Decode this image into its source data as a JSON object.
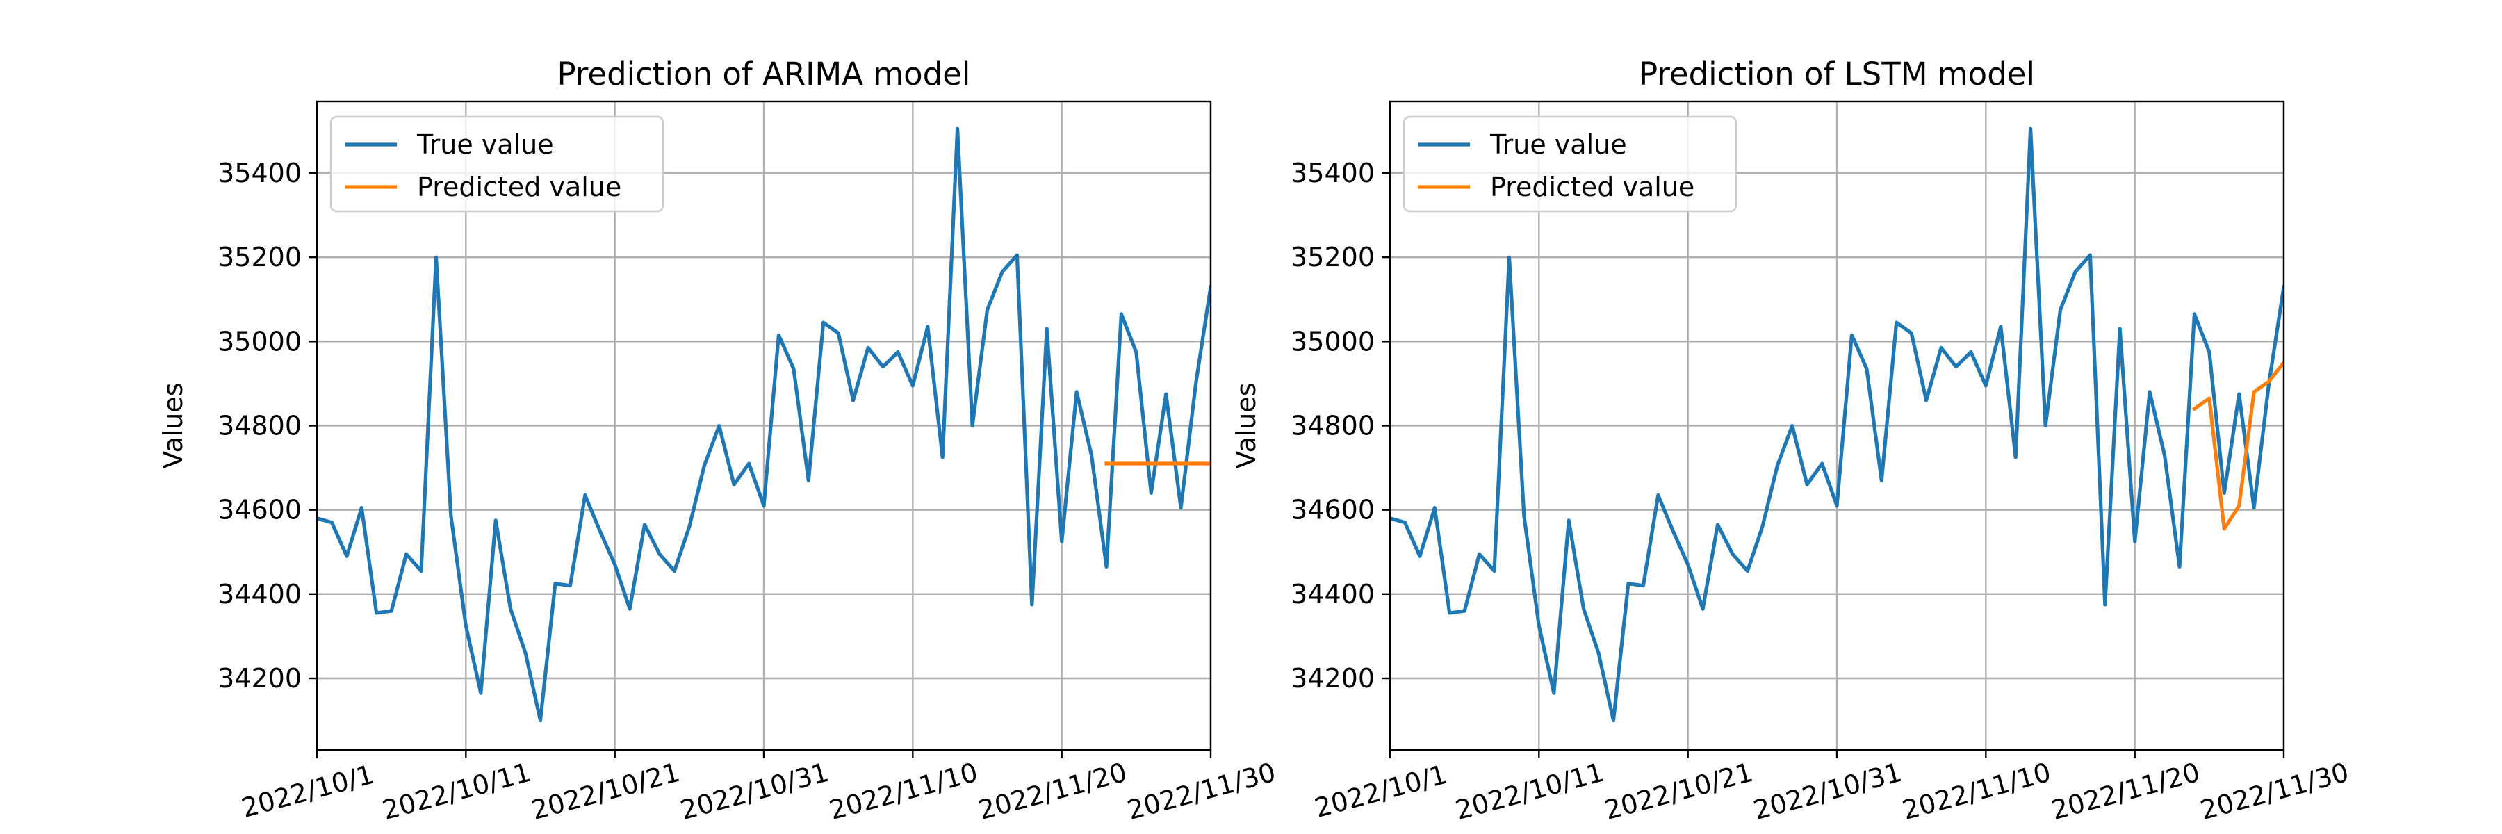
{
  "chart_data": [
    {
      "type": "line",
      "title": "Prediction of ARIMA model",
      "xlabel": "",
      "ylabel": "Values",
      "x_ticks": [
        "2022/10/1",
        "2022/10/11",
        "2022/10/21",
        "2022/10/31",
        "2022/11/10",
        "2022/11/20",
        "2022/11/30"
      ],
      "y_ticks": [
        "34200",
        "34400",
        "34600",
        "34800",
        "35000",
        "35200",
        "35400"
      ],
      "xlim": [
        "2022/10/1",
        "2022/11/30"
      ],
      "ylim": [
        34030,
        35570
      ],
      "grid": true,
      "legend_position": "upper-left",
      "series": [
        {
          "name": "True value",
          "color": "#1f77b4",
          "x": [
            "2022/10/1",
            "2022/10/2",
            "2022/10/3",
            "2022/10/4",
            "2022/10/5",
            "2022/10/6",
            "2022/10/7",
            "2022/10/8",
            "2022/10/9",
            "2022/10/10",
            "2022/10/11",
            "2022/10/12",
            "2022/10/13",
            "2022/10/14",
            "2022/10/15",
            "2022/10/16",
            "2022/10/17",
            "2022/10/18",
            "2022/10/19",
            "2022/10/20",
            "2022/10/21",
            "2022/10/22",
            "2022/10/23",
            "2022/10/24",
            "2022/10/25",
            "2022/10/26",
            "2022/10/27",
            "2022/10/28",
            "2022/10/29",
            "2022/10/30",
            "2022/10/31",
            "2022/11/1",
            "2022/11/2",
            "2022/11/3",
            "2022/11/4",
            "2022/11/5",
            "2022/11/6",
            "2022/11/7",
            "2022/11/8",
            "2022/11/9",
            "2022/11/10",
            "2022/11/11",
            "2022/11/12",
            "2022/11/13",
            "2022/11/14",
            "2022/11/15",
            "2022/11/16",
            "2022/11/17",
            "2022/11/18",
            "2022/11/19",
            "2022/11/20",
            "2022/11/21",
            "2022/11/22",
            "2022/11/23",
            "2022/11/24",
            "2022/11/25",
            "2022/11/26",
            "2022/11/27",
            "2022/11/28",
            "2022/11/29",
            "2022/11/30"
          ],
          "values": [
            34580,
            34570,
            34490,
            34605,
            34355,
            34360,
            34495,
            34455,
            35200,
            34585,
            34325,
            34165,
            34575,
            34365,
            34260,
            34100,
            34425,
            34420,
            34635,
            34550,
            34470,
            34365,
            34565,
            34495,
            34455,
            34560,
            34705,
            34800,
            34660,
            34710,
            34610,
            35015,
            34935,
            34670,
            35045,
            35020,
            34860,
            34985,
            34940,
            34975,
            34895,
            35035,
            34725,
            35505,
            34800,
            35075,
            35165,
            35205,
            34375,
            35030,
            34525,
            34880,
            34730,
            34465,
            35065,
            34975,
            34640,
            34875,
            34605,
            34900,
            35130
          ]
        },
        {
          "name": "Predicted value",
          "color": "#ff7f0e",
          "x": [
            "2022/11/23",
            "2022/11/24",
            "2022/11/25",
            "2022/11/26",
            "2022/11/27",
            "2022/11/28",
            "2022/11/29",
            "2022/11/30"
          ],
          "values": [
            34710,
            34710,
            34710,
            34710,
            34710,
            34710,
            34710,
            34710
          ]
        }
      ]
    },
    {
      "type": "line",
      "title": "Prediction of LSTM model",
      "xlabel": "",
      "ylabel": "Values",
      "x_ticks": [
        "2022/10/1",
        "2022/10/11",
        "2022/10/21",
        "2022/10/31",
        "2022/11/10",
        "2022/11/20",
        "2022/11/30"
      ],
      "y_ticks": [
        "34200",
        "34400",
        "34600",
        "34800",
        "35000",
        "35200",
        "35400"
      ],
      "xlim": [
        "2022/10/1",
        "2022/11/30"
      ],
      "ylim": [
        34030,
        35570
      ],
      "grid": true,
      "legend_position": "upper-left",
      "series": [
        {
          "name": "True value",
          "color": "#1f77b4",
          "x": [
            "2022/10/1",
            "2022/10/2",
            "2022/10/3",
            "2022/10/4",
            "2022/10/5",
            "2022/10/6",
            "2022/10/7",
            "2022/10/8",
            "2022/10/9",
            "2022/10/10",
            "2022/10/11",
            "2022/10/12",
            "2022/10/13",
            "2022/10/14",
            "2022/10/15",
            "2022/10/16",
            "2022/10/17",
            "2022/10/18",
            "2022/10/19",
            "2022/10/20",
            "2022/10/21",
            "2022/10/22",
            "2022/10/23",
            "2022/10/24",
            "2022/10/25",
            "2022/10/26",
            "2022/10/27",
            "2022/10/28",
            "2022/10/29",
            "2022/10/30",
            "2022/10/31",
            "2022/11/1",
            "2022/11/2",
            "2022/11/3",
            "2022/11/4",
            "2022/11/5",
            "2022/11/6",
            "2022/11/7",
            "2022/11/8",
            "2022/11/9",
            "2022/11/10",
            "2022/11/11",
            "2022/11/12",
            "2022/11/13",
            "2022/11/14",
            "2022/11/15",
            "2022/11/16",
            "2022/11/17",
            "2022/11/18",
            "2022/11/19",
            "2022/11/20",
            "2022/11/21",
            "2022/11/22",
            "2022/11/23",
            "2022/11/24",
            "2022/11/25",
            "2022/11/26",
            "2022/11/27",
            "2022/11/28",
            "2022/11/29",
            "2022/11/30"
          ],
          "values": [
            34580,
            34570,
            34490,
            34605,
            34355,
            34360,
            34495,
            34455,
            35200,
            34585,
            34325,
            34165,
            34575,
            34365,
            34260,
            34100,
            34425,
            34420,
            34635,
            34550,
            34470,
            34365,
            34565,
            34495,
            34455,
            34560,
            34705,
            34800,
            34660,
            34710,
            34610,
            35015,
            34935,
            34670,
            35045,
            35020,
            34860,
            34985,
            34940,
            34975,
            34895,
            35035,
            34725,
            35505,
            34800,
            35075,
            35165,
            35205,
            34375,
            35030,
            34525,
            34880,
            34730,
            34465,
            35065,
            34975,
            34640,
            34875,
            34605,
            34900,
            35130
          ]
        },
        {
          "name": "Predicted value",
          "color": "#ff7f0e",
          "x": [
            "2022/11/24",
            "2022/11/25",
            "2022/11/26",
            "2022/11/27",
            "2022/11/28",
            "2022/11/29",
            "2022/11/30"
          ],
          "values": [
            34840,
            34865,
            34555,
            34610,
            34880,
            34905,
            34950
          ]
        }
      ]
    }
  ]
}
